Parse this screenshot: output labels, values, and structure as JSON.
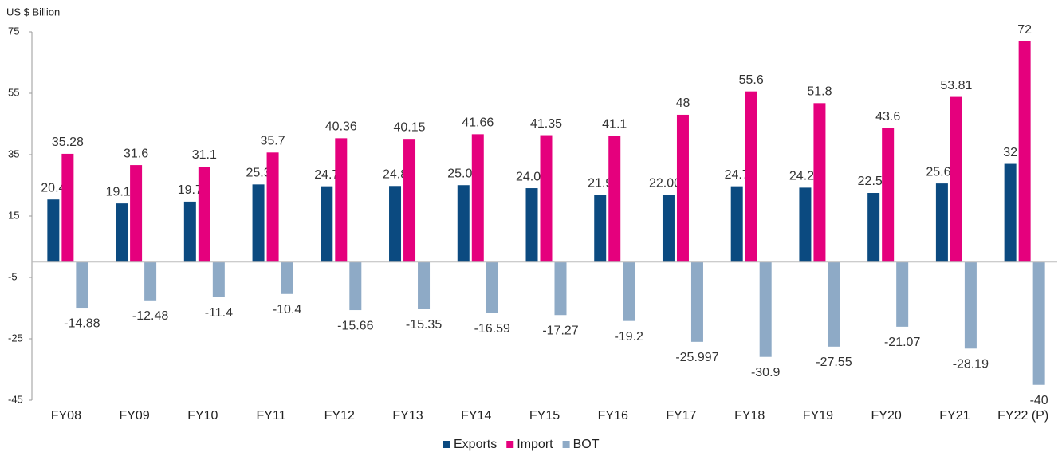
{
  "chart_data": {
    "type": "bar",
    "y_axis_label": "US $ Billion",
    "categories": [
      "FY08",
      "FY09",
      "FY10",
      "FY11",
      "FY12",
      "FY13",
      "FY14",
      "FY15",
      "FY16",
      "FY17",
      "FY18",
      "FY19",
      "FY20",
      "FY21",
      "FY22 (P)"
    ],
    "series": [
      {
        "name": "Exports",
        "color": "#0b4a80",
        "values": [
          20.4,
          19.12,
          19.7,
          25.3,
          24.7,
          24.8,
          25.07,
          24.08,
          21.9,
          22.003,
          24.7,
          24.25,
          22.53,
          25.62,
          32
        ]
      },
      {
        "name": "Import",
        "color": "#e5007d",
        "values": [
          35.28,
          31.6,
          31.1,
          35.7,
          40.36,
          40.15,
          41.66,
          41.35,
          41.1,
          48,
          55.6,
          51.8,
          43.6,
          53.81,
          72
        ]
      },
      {
        "name": "BOT",
        "color": "#8eaac6",
        "values": [
          -14.88,
          -12.48,
          -11.4,
          -10.4,
          -15.66,
          -15.35,
          -16.59,
          -17.27,
          -19.2,
          -25.997,
          -30.9,
          -27.55,
          -21.07,
          -28.19,
          -40
        ]
      }
    ],
    "ylim": [
      -45,
      75
    ],
    "yticks": [
      75,
      55,
      35,
      15,
      -5,
      -25,
      -45
    ],
    "legend": "bottom"
  }
}
